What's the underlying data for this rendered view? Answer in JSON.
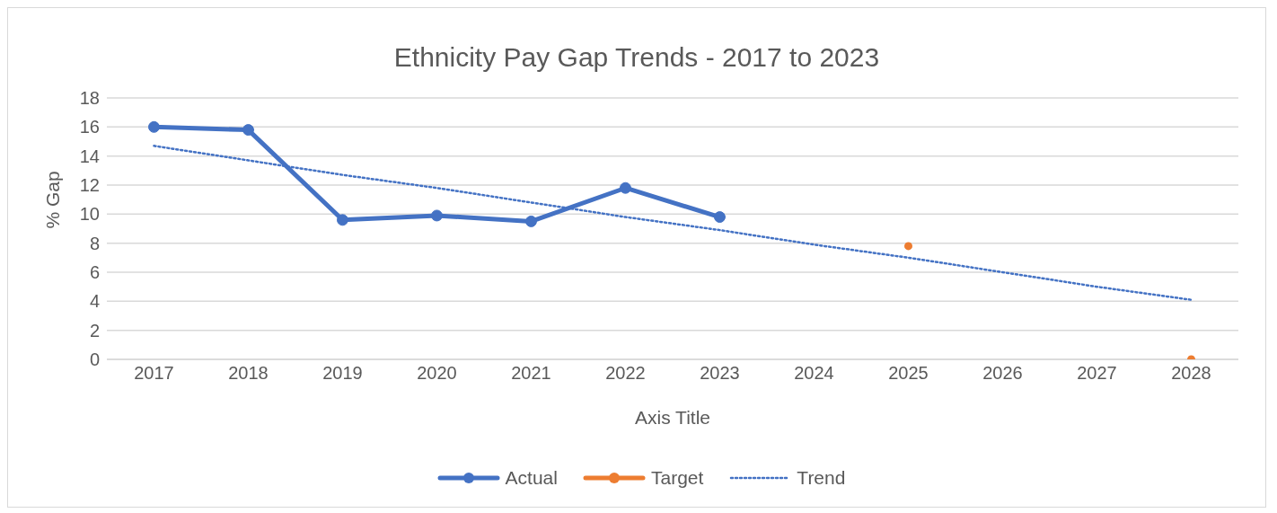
{
  "chart_data": {
    "type": "line",
    "title": "Ethnicity Pay Gap Trends - 2017 to 2023",
    "xlabel": "Axis Title",
    "ylabel": "% Gap",
    "categories": [
      "2017",
      "2018",
      "2019",
      "2020",
      "2021",
      "2022",
      "2023",
      "2024",
      "2025",
      "2026",
      "2027",
      "2028"
    ],
    "series": [
      {
        "name": "Actual",
        "color": "#4472c4",
        "values": [
          16.0,
          15.8,
          9.6,
          9.9,
          9.5,
          11.8,
          9.8,
          null,
          null,
          null,
          null,
          null
        ],
        "marker": "circle"
      },
      {
        "name": "Target",
        "type": "scatter",
        "color": "#ed7d31",
        "values": [
          null,
          null,
          null,
          null,
          null,
          null,
          null,
          null,
          7.8,
          null,
          null,
          0
        ],
        "marker": "circle"
      },
      {
        "name": "Trend",
        "color": "#4472c4",
        "values": [
          14.7,
          13.7,
          12.7,
          11.8,
          10.8,
          9.8,
          8.9,
          7.9,
          7.0,
          6.0,
          5.0,
          4.1
        ],
        "line_style": "dotted",
        "marker": "none"
      }
    ],
    "ylim": [
      0,
      18
    ],
    "yticks": [
      0,
      2,
      4,
      6,
      8,
      10,
      12,
      14,
      16,
      18
    ],
    "grid": "y",
    "legend": "bottom"
  }
}
